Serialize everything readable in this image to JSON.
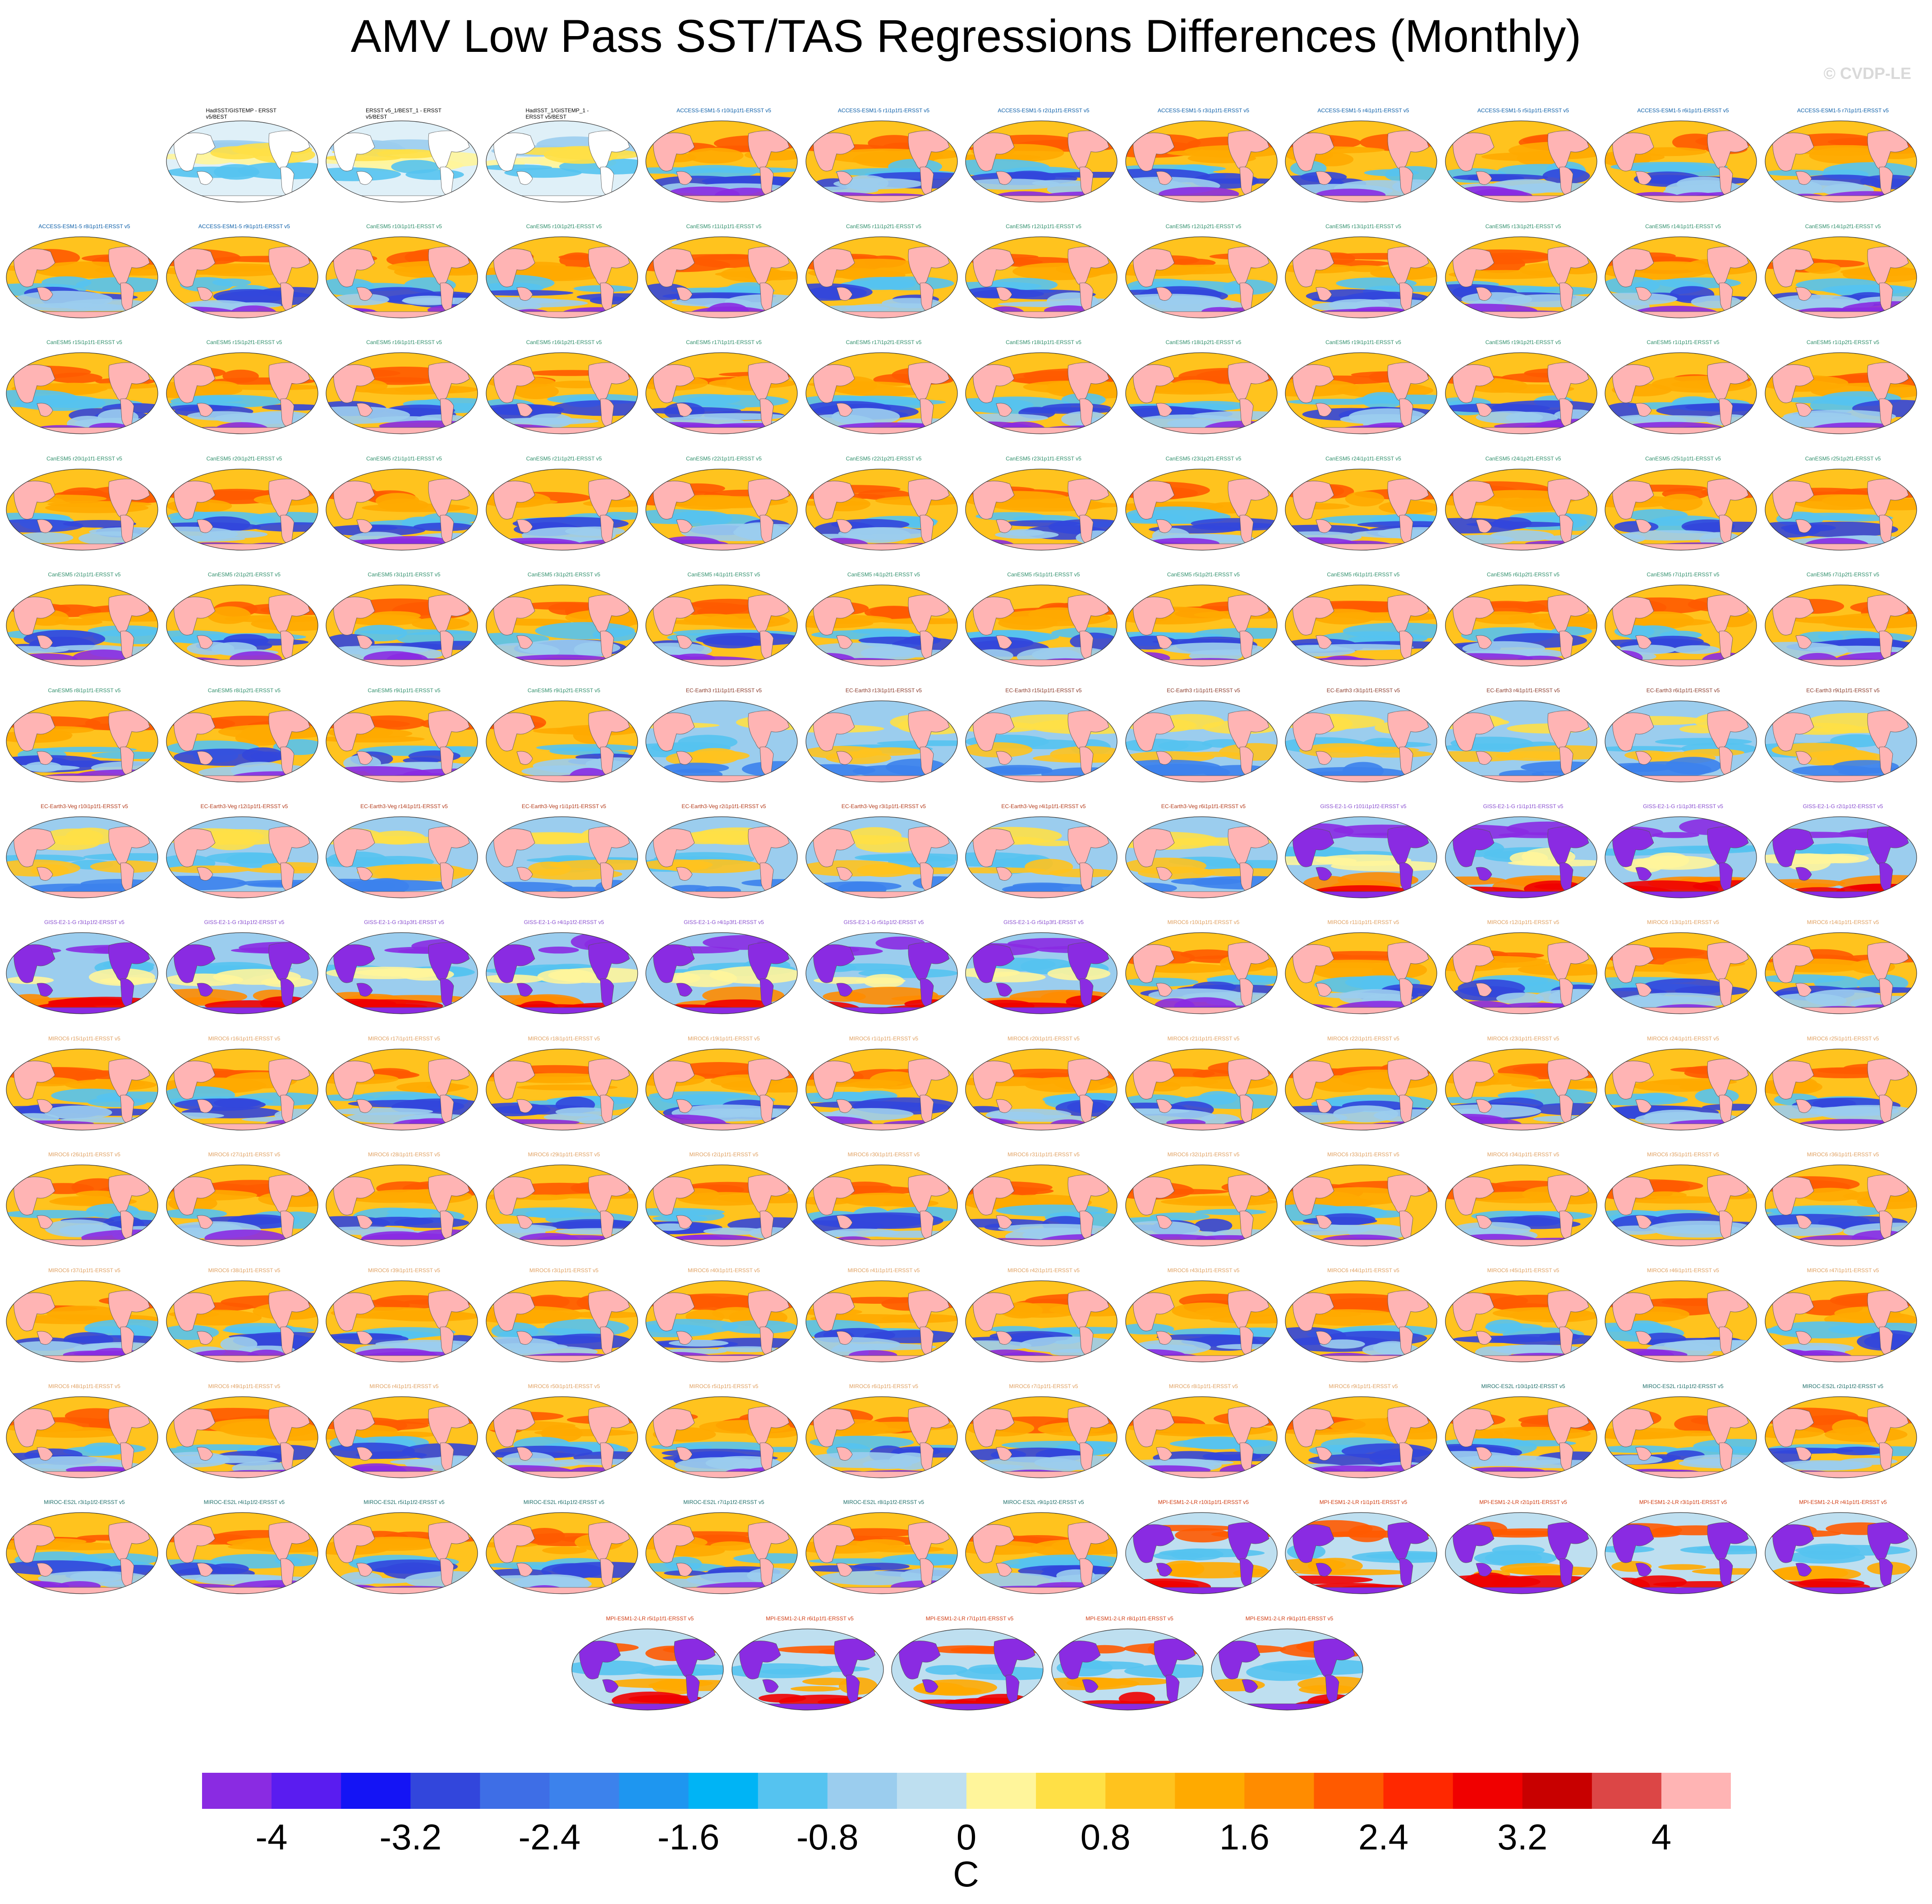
{
  "title": "AMV Low Pass SST/TAS Regressions Differences (Monthly)",
  "copyright": "© CVDP-LE",
  "colorbar": {
    "unit": "C",
    "labels": [
      "-4",
      "-3.2",
      "-2.4",
      "-1.6",
      "-0.8",
      "0",
      "0.8",
      "1.6",
      "2.4",
      "3.2",
      "4"
    ],
    "colors": [
      "#8a2be2",
      "#5a1cf0",
      "#1414f5",
      "#3246dc",
      "#3e6ee6",
      "#3c82ec",
      "#1e96f0",
      "#00b4f5",
      "#55c3f0",
      "#9bcdee",
      "#bedff0",
      "#fff59b",
      "#ffe046",
      "#ffc31e",
      "#ffaa00",
      "#ff8c00",
      "#ff5a00",
      "#ff2800",
      "#f00000",
      "#c80000",
      "#dc4646",
      "#ffb4b4"
    ]
  },
  "panel_groups": {
    "obs": "HadISST/GISTEMP - ERSST v5/BEST|ERSST v5_1/BEST_1 - ERSST v5/BEST|HadISST_1/GISTEMP_1 - ERSST v5/BEST",
    "access": "ACCESS-ESM1-5 r10i1p1f1-ERSST v5|ACCESS-ESM1-5 r1i1p1f1-ERSST v5|ACCESS-ESM1-5 r2i1p1f1-ERSST v5|ACCESS-ESM1-5 r3i1p1f1-ERSST v5|ACCESS-ESM1-5 r4i1p1f1-ERSST v5|ACCESS-ESM1-5 r5i1p1f1-ERSST v5|ACCESS-ESM1-5 r6i1p1f1-ERSST v5|ACCESS-ESM1-5 r7i1p1f1-ERSST v5|ACCESS-ESM1-5 r8i1p1f1-ERSST v5|ACCESS-ESM1-5 r9i1p1f1-ERSST v5",
    "canesm": "CanESM5 r10i1p1f1-ERSST v5|CanESM5 r10i1p2f1-ERSST v5|CanESM5 r11i1p1f1-ERSST v5|CanESM5 r11i1p2f1-ERSST v5|CanESM5 r12i1p1f1-ERSST v5|CanESM5 r12i1p2f1-ERSST v5|CanESM5 r13i1p1f1-ERSST v5|CanESM5 r13i1p2f1-ERSST v5|CanESM5 r14i1p1f1-ERSST v5|CanESM5 r14i1p2f1-ERSST v5|CanESM5 r15i1p1f1-ERSST v5|CanESM5 r15i1p2f1-ERSST v5|CanESM5 r16i1p1f1-ERSST v5|CanESM5 r16i1p2f1-ERSST v5|CanESM5 r17i1p1f1-ERSST v5|CanESM5 r17i1p2f1-ERSST v5|CanESM5 r18i1p1f1-ERSST v5|CanESM5 r18i1p2f1-ERSST v5|CanESM5 r19i1p1f1-ERSST v5|CanESM5 r19i1p2f1-ERSST v5|CanESM5 r1i1p1f1-ERSST v5|CanESM5 r1i1p2f1-ERSST v5|CanESM5 r20i1p1f1-ERSST v5|CanESM5 r20i1p2f1-ERSST v5|CanESM5 r21i1p1f1-ERSST v5|CanESM5 r21i1p2f1-ERSST v5|CanESM5 r22i1p1f1-ERSST v5|CanESM5 r22i1p2f1-ERSST v5|CanESM5 r23i1p1f1-ERSST v5|CanESM5 r23i1p2f1-ERSST v5|CanESM5 r24i1p1f1-ERSST v5|CanESM5 r24i1p2f1-ERSST v5|CanESM5 r25i1p1f1-ERSST v5|CanESM5 r25i1p2f1-ERSST v5|CanESM5 r2i1p1f1-ERSST v5|CanESM5 r2i1p2f1-ERSST v5|CanESM5 r3i1p1f1-ERSST v5|CanESM5 r3i1p2f1-ERSST v5|CanESM5 r4i1p1f1-ERSST v5|CanESM5 r4i1p2f1-ERSST v5|CanESM5 r5i1p1f1-ERSST v5|CanESM5 r5i1p2f1-ERSST v5|CanESM5 r6i1p1f1-ERSST v5|CanESM5 r6i1p2f1-ERSST v5|CanESM5 r7i1p1f1-ERSST v5|CanESM5 r7i1p2f1-ERSST v5|CanESM5 r8i1p1f1-ERSST v5|CanESM5 r8i1p2f1-ERSST v5|CanESM5 r9i1p1f1-ERSST v5|CanESM5 r9i1p2f1-ERSST v5",
    "ecearth": "EC-Earth3 r11i1p1f1-ERSST v5|EC-Earth3 r13i1p1f1-ERSST v5|EC-Earth3 r15i1p1f1-ERSST v5|EC-Earth3 r1i1p1f1-ERSST v5|EC-Earth3 r3i1p1f1-ERSST v5|EC-Earth3 r4i1p1f1-ERSST v5|EC-Earth3 r6i1p1f1-ERSST v5|EC-Earth3 r9i1p1f1-ERSST v5",
    "ecveg": "EC-Earth3-Veg r10i1p1f1-ERSST v5|EC-Earth3-Veg r12i1p1f1-ERSST v5|EC-Earth3-Veg r14i1p1f1-ERSST v5|EC-Earth3-Veg r1i1p1f1-ERSST v5|EC-Earth3-Veg r2i1p1f1-ERSST v5|EC-Earth3-Veg r3i1p1f1-ERSST v5|EC-Earth3-Veg r4i1p1f1-ERSST v5|EC-Earth3-Veg r6i1p1f1-ERSST v5",
    "giss": "GISS-E2-1-G r101i1p1f2-ERSST v5|GISS-E2-1-G r1i1p1f1-ERSST v5|GISS-E2-1-G r1i1p3f1-ERSST v5|GISS-E2-1-G r2i1p1f2-ERSST v5|GISS-E2-1-G r3i1p1f2-ERSST v5|GISS-E2-1-G r3i1p1f2-ERSST v5|GISS-E2-1-G r3i1p3f1-ERSST v5|GISS-E2-1-G r4i1p1f2-ERSST v5|GISS-E2-1-G r4i1p3f1-ERSST v5|GISS-E2-1-G r5i1p1f2-ERSST v5|GISS-E2-1-G r5i1p3f1-ERSST v5",
    "miroc6": "MIROC6 r10i1p1f1-ERSST v5|MIROC6 r11i1p1f1-ERSST v5|MIROC6 r12i1p1f1-ERSST v5|MIROC6 r13i1p1f1-ERSST v5|MIROC6 r14i1p1f1-ERSST v5|MIROC6 r15i1p1f1-ERSST v5|MIROC6 r16i1p1f1-ERSST v5|MIROC6 r17i1p1f1-ERSST v5|MIROC6 r18i1p1f1-ERSST v5|MIROC6 r19i1p1f1-ERSST v5|MIROC6 r1i1p1f1-ERSST v5|MIROC6 r20i1p1f1-ERSST v5|MIROC6 r21i1p1f1-ERSST v5|MIROC6 r22i1p1f1-ERSST v5|MIROC6 r23i1p1f1-ERSST v5|MIROC6 r24i1p1f1-ERSST v5|MIROC6 r25i1p1f1-ERSST v5|MIROC6 r26i1p1f1-ERSST v5|MIROC6 r27i1p1f1-ERSST v5|MIROC6 r28i1p1f1-ERSST v5|MIROC6 r29i1p1f1-ERSST v5|MIROC6 r2i1p1f1-ERSST v5|MIROC6 r30i1p1f1-ERSST v5|MIROC6 r31i1p1f1-ERSST v5|MIROC6 r32i1p1f1-ERSST v5|MIROC6 r33i1p1f1-ERSST v5|MIROC6 r34i1p1f1-ERSST v5|MIROC6 r35i1p1f1-ERSST v5|MIROC6 r36i1p1f1-ERSST v5|MIROC6 r37i1p1f1-ERSST v5|MIROC6 r38i1p1f1-ERSST v5|MIROC6 r39i1p1f1-ERSST v5|MIROC6 r3i1p1f1-ERSST v5|MIROC6 r40i1p1f1-ERSST v5|MIROC6 r41i1p1f1-ERSST v5|MIROC6 r42i1p1f1-ERSST v5|MIROC6 r43i1p1f1-ERSST v5|MIROC6 r44i1p1f1-ERSST v5|MIROC6 r45i1p1f1-ERSST v5|MIROC6 r46i1p1f1-ERSST v5|MIROC6 r47i1p1f1-ERSST v5|MIROC6 r48i1p1f1-ERSST v5|MIROC6 r49i1p1f1-ERSST v5|MIROC6 r4i1p1f1-ERSST v5|MIROC6 r50i1p1f1-ERSST v5|MIROC6 r5i1p1f1-ERSST v5|MIROC6 r6i1p1f1-ERSST v5|MIROC6 r7i1p1f1-ERSST v5|MIROC6 r8i1p1f1-ERSST v5|MIROC6 r9i1p1f1-ERSST v5",
    "es2l": "MIROC-ES2L r10i1p1f2-ERSST v5|MIROC-ES2L r1i1p1f2-ERSST v5|MIROC-ES2L r2i1p1f2-ERSST v5|MIROC-ES2L r3i1p1f2-ERSST v5|MIROC-ES2L r4i1p1f2-ERSST v5|MIROC-ES2L r5i1p1f2-ERSST v5|MIROC-ES2L r6i1p1f2-ERSST v5|MIROC-ES2L r7i1p1f2-ERSST v5|MIROC-ES2L r8i1p1f2-ERSST v5|MIROC-ES2L r9i1p1f2-ERSST v5",
    "mpi": "MPI-ESM1-2-LR r10i1p1f1-ERSST v5|MPI-ESM1-2-LR r1i1p1f1-ERSST v5|MPI-ESM1-2-LR r2i1p1f1-ERSST v5|MPI-ESM1-2-LR r3i1p1f1-ERSST v5|MPI-ESM1-2-LR r4i1p1f1-ERSST v5|MPI-ESM1-2-LR r5i1p1f1-ERSST v5|MPI-ESM1-2-LR r6i1p1f1-ERSST v5|MPI-ESM1-2-LR r7i1p1f1-ERSST v5|MPI-ESM1-2-LR r8i1p1f1-ERSST v5|MPI-ESM1-2-LR r9i1p1f1-ERSST v5"
  },
  "group_colors": {
    "obs": "#000000",
    "access": "#0b5ea8",
    "canesm": "#2f8f6b",
    "ecearth": "#8a3a2a",
    "ecveg": "#b33a1a",
    "giss": "#8a4fd0",
    "miroc6": "#e0a060",
    "es2l": "#1f6f6a",
    "mpi": "#d03a10"
  },
  "group_styles": {
    "obs": "obs",
    "access": "model",
    "canesm": "model",
    "ecearth": "ecearth",
    "ecveg": "ecearth",
    "giss": "giss",
    "miroc6": "model",
    "es2l": "model",
    "mpi": "mpi"
  }
}
